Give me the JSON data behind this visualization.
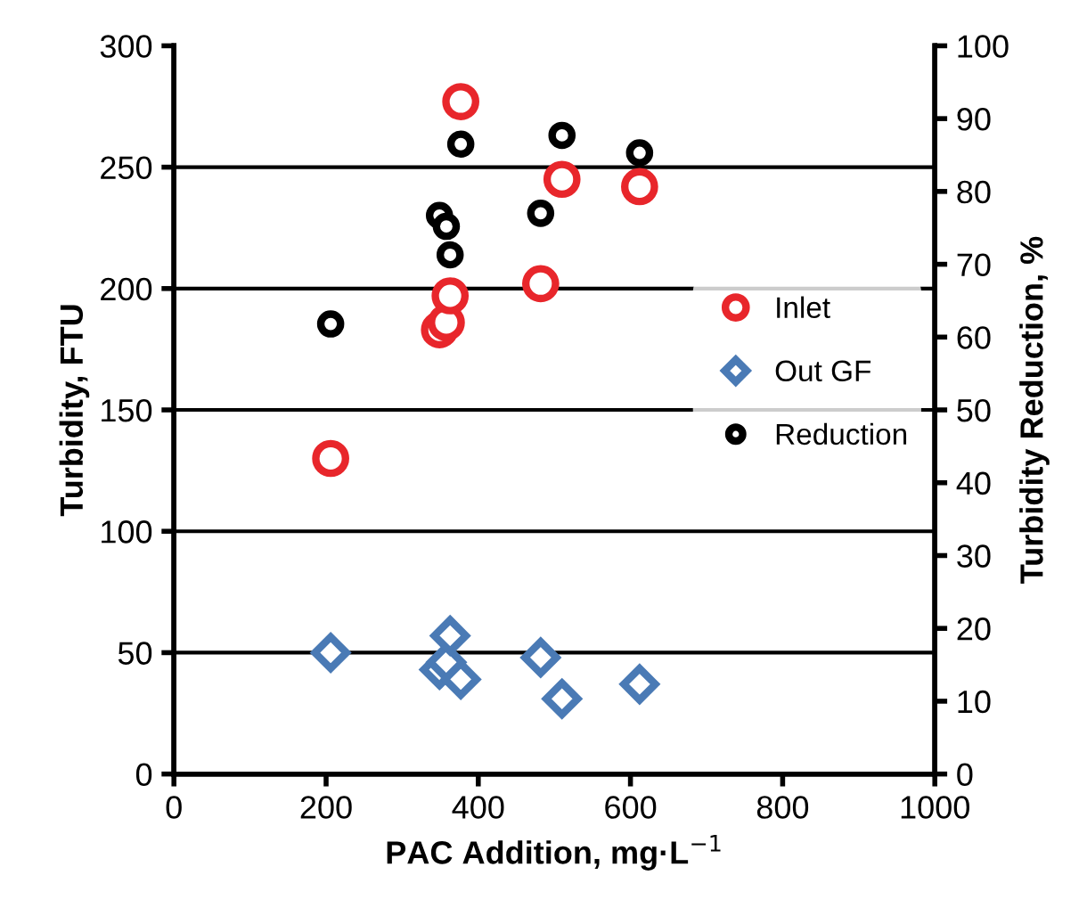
{
  "chart_data": {
    "type": "scatter",
    "xlabel": "PAC Addition, mg·L$^{−1}$",
    "ylabel": "Turbidity, FTU",
    "y2label": "Turbidity Reduction, %",
    "xlim": [
      0,
      1000
    ],
    "xticks": [
      0,
      200,
      400,
      600,
      800,
      1000
    ],
    "ylim": [
      0,
      300
    ],
    "yticks": [
      0,
      50,
      100,
      150,
      200,
      250,
      300
    ],
    "y2lim": [
      0,
      100
    ],
    "y2ticks": [
      0,
      10,
      20,
      30,
      40,
      50,
      60,
      70,
      80,
      90,
      100
    ],
    "grid": "y",
    "legend": "right",
    "series": [
      {
        "name": "Inlet",
        "color": "#e8262b",
        "marker": "circle",
        "x": [
          206,
          349,
          358,
          363,
          377,
          482,
          510,
          612
        ],
        "values": [
          130,
          183,
          186,
          197,
          277,
          202,
          245,
          242
        ]
      },
      {
        "name": "Out GF",
        "color": "#4a7ab5",
        "marker": "diamond",
        "x": [
          206,
          349,
          358,
          363,
          377,
          482,
          510,
          612
        ],
        "values": [
          50,
          43,
          46,
          57,
          39,
          48,
          31,
          37
        ]
      },
      {
        "name": "Reduction",
        "color": "#000000",
        "marker": "circle",
        "axis": "y2",
        "x": [
          206,
          349,
          358,
          363,
          377,
          482,
          510,
          612
        ],
        "values": [
          61.8,
          76.7,
          75.2,
          71.3,
          86.5,
          77,
          87.7,
          85.3
        ]
      }
    ]
  }
}
